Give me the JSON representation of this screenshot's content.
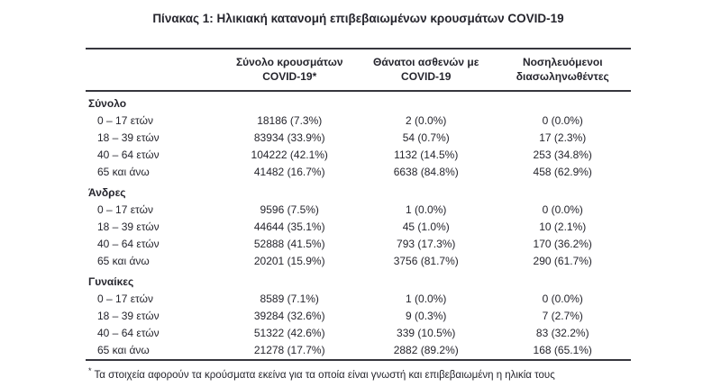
{
  "title": "Πίνακας 1: Ηλικιακή κατανομή επιβεβαιωμένων κρουσμάτων COVID-19",
  "colors": {
    "text": "#25252d",
    "rule": "#36363e",
    "background": "#ffffff"
  },
  "table": {
    "col_headers": [
      {
        "line1": "Σύνολο κρουσμάτων",
        "line2": "COVID-19*"
      },
      {
        "line1": "Θάνατοι ασθενών με",
        "line2": "COVID-19"
      },
      {
        "line1": "Νοσηλευόμενοι",
        "line2": "διασωληνωθέντες"
      }
    ],
    "sections": [
      {
        "name": "Σύνολο",
        "rows": [
          [
            "0 – 17 ετών",
            "18186 (7.3%)",
            "2 (0.0%)",
            "0 (0.0%)"
          ],
          [
            "18 – 39 ετών",
            "83934 (33.9%)",
            "54 (0.7%)",
            "17 (2.3%)"
          ],
          [
            "40 – 64 ετών",
            "104222 (42.1%)",
            "1132 (14.5%)",
            "253 (34.8%)"
          ],
          [
            "65 και άνω",
            "41482 (16.7%)",
            "6638 (84.8%)",
            "458 (62.9%)"
          ]
        ]
      },
      {
        "name": "Άνδρες",
        "rows": [
          [
            "0 – 17 ετών",
            "9596 (7.5%)",
            "1 (0.0%)",
            "0 (0.0%)"
          ],
          [
            "18 – 39 ετών",
            "44644 (35.1%)",
            "45 (1.0%)",
            "10 (2.1%)"
          ],
          [
            "40 – 64 ετών",
            "52888 (41.5%)",
            "793 (17.3%)",
            "170 (36.2%)"
          ],
          [
            "65 και άνω",
            "20201 (15.9%)",
            "3756 (81.7%)",
            "290 (61.7%)"
          ]
        ]
      },
      {
        "name": "Γυναίκες",
        "rows": [
          [
            "0 – 17 ετών",
            "8589 (7.1%)",
            "1 (0.0%)",
            "0 (0.0%)"
          ],
          [
            "18 – 39 ετών",
            "39284 (32.6%)",
            "9 (0.3%)",
            "7 (2.7%)"
          ],
          [
            "40 – 64 ετών",
            "51322 (42.6%)",
            "339 (10.5%)",
            "83 (32.2%)"
          ],
          [
            "65 και άνω",
            "21278 (17.7%)",
            "2882 (89.2%)",
            "168 (65.1%)"
          ]
        ]
      }
    ]
  },
  "footnote": {
    "marker": "*",
    "text": "Τα στοιχεία αφορούν τα κρούσματα εκείνα για τα οποία είναι γνωστή και επιβεβαιωμένη η ηλικία τους"
  }
}
